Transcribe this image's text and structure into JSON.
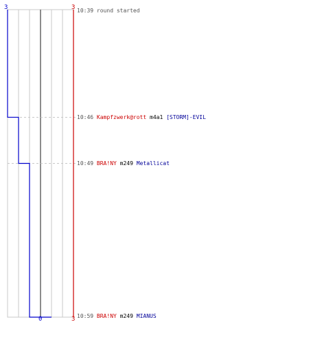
{
  "colors": {
    "team_a": "#cc0000",
    "team_b": "#0000cc",
    "grid": "#c8c8c8",
    "center_line": "#666666",
    "time": "#555555"
  },
  "axis": {
    "left_top_count": "3",
    "right_top_count": "3",
    "left_bottom_count": "0",
    "right_bottom_count": "3"
  },
  "events": [
    {
      "time": "10:39",
      "note": "round started"
    },
    {
      "time": "10:46",
      "killer": "Kampfzwerk@rott",
      "weapon": "m4a1",
      "victim": "[STORM]-EVIL"
    },
    {
      "time": "10:49",
      "killer": "BRA!NY",
      "weapon": "m249",
      "victim": "Metallicat"
    },
    {
      "time": "10:59",
      "killer": "BRA!NY",
      "weapon": "m249",
      "victim": "MIANUS"
    }
  ],
  "chart_data": {
    "type": "line",
    "title": "",
    "x_label": "",
    "y_label": "",
    "time_range": [
      "10:39",
      "10:59"
    ],
    "series": [
      {
        "color": "#cc0000",
        "points": [
          {
            "time": "10:39",
            "players_alive": 3
          },
          {
            "time": "10:59",
            "players_alive": 3
          }
        ]
      },
      {
        "color": "#0000cc",
        "points": [
          {
            "time": "10:39",
            "players_alive": 3
          },
          {
            "time": "10:46",
            "players_alive": 2
          },
          {
            "time": "10:49",
            "players_alive": 1
          },
          {
            "time": "10:59",
            "players_alive": 0
          }
        ]
      }
    ],
    "player_slots": 6
  }
}
